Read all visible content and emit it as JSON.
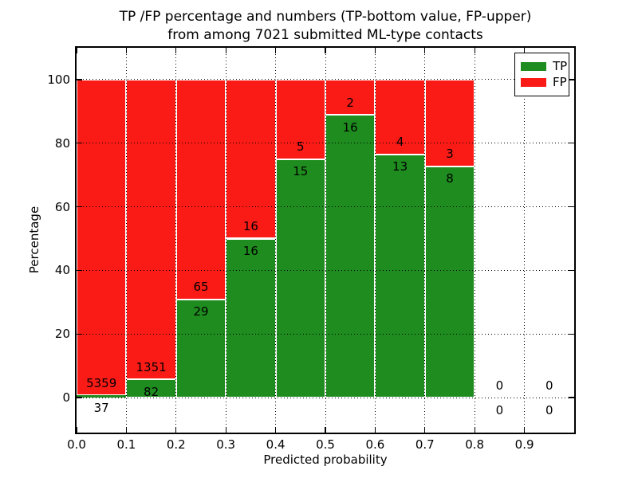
{
  "figure": {
    "title_line1": "TP /FP percentage and numbers (TP-bottom value, FP-upper)",
    "title_line2": "from among 7021 submitted ML-type contacts",
    "xlabel": "Predicted probability",
    "ylabel": "Percentage"
  },
  "legend": {
    "position": "upper right",
    "items": [
      {
        "label": "TP",
        "color": "#1e8c1e"
      },
      {
        "label": "FP",
        "color": "#fb1b16"
      }
    ]
  },
  "chart_data": {
    "type": "bar",
    "stacked": true,
    "normalized_to_percent": 100,
    "title": "TP /FP percentage and numbers (TP-bottom value, FP-upper)\nfrom among 7021 submitted ML-type contacts",
    "xlabel": "Predicted probability",
    "ylabel": "Percentage",
    "total_contacts": 7021,
    "bin_edges": [
      0.0,
      0.1,
      0.2,
      0.3,
      0.4,
      0.5,
      0.6,
      0.7,
      0.8,
      0.9,
      1.0
    ],
    "series": [
      {
        "name": "TP",
        "color": "#1e8c1e",
        "counts": [
          37,
          82,
          29,
          16,
          15,
          16,
          13,
          8,
          0,
          0
        ],
        "percentages": [
          0.69,
          5.72,
          30.85,
          50.0,
          75.0,
          88.89,
          76.47,
          72.73,
          0,
          0
        ]
      },
      {
        "name": "FP",
        "color": "#fb1b16",
        "counts": [
          5359,
          1351,
          65,
          16,
          5,
          2,
          4,
          3,
          0,
          0
        ],
        "percentages": [
          99.31,
          94.28,
          69.15,
          50.0,
          25.0,
          11.11,
          23.53,
          27.27,
          0,
          0
        ]
      }
    ],
    "xlim": [
      0.0,
      1.0
    ],
    "ylim": [
      -11,
      110
    ],
    "xticks": [
      "0.0",
      "0.1",
      "0.2",
      "0.3",
      "0.4",
      "0.5",
      "0.6",
      "0.7",
      "0.8",
      "0.9"
    ],
    "yticks": [
      "0",
      "20",
      "40",
      "60",
      "80",
      "100"
    ],
    "grid": "dotted, drawn above bars",
    "bar_edge_color": "#ffffff",
    "legend_position": "upper right"
  }
}
